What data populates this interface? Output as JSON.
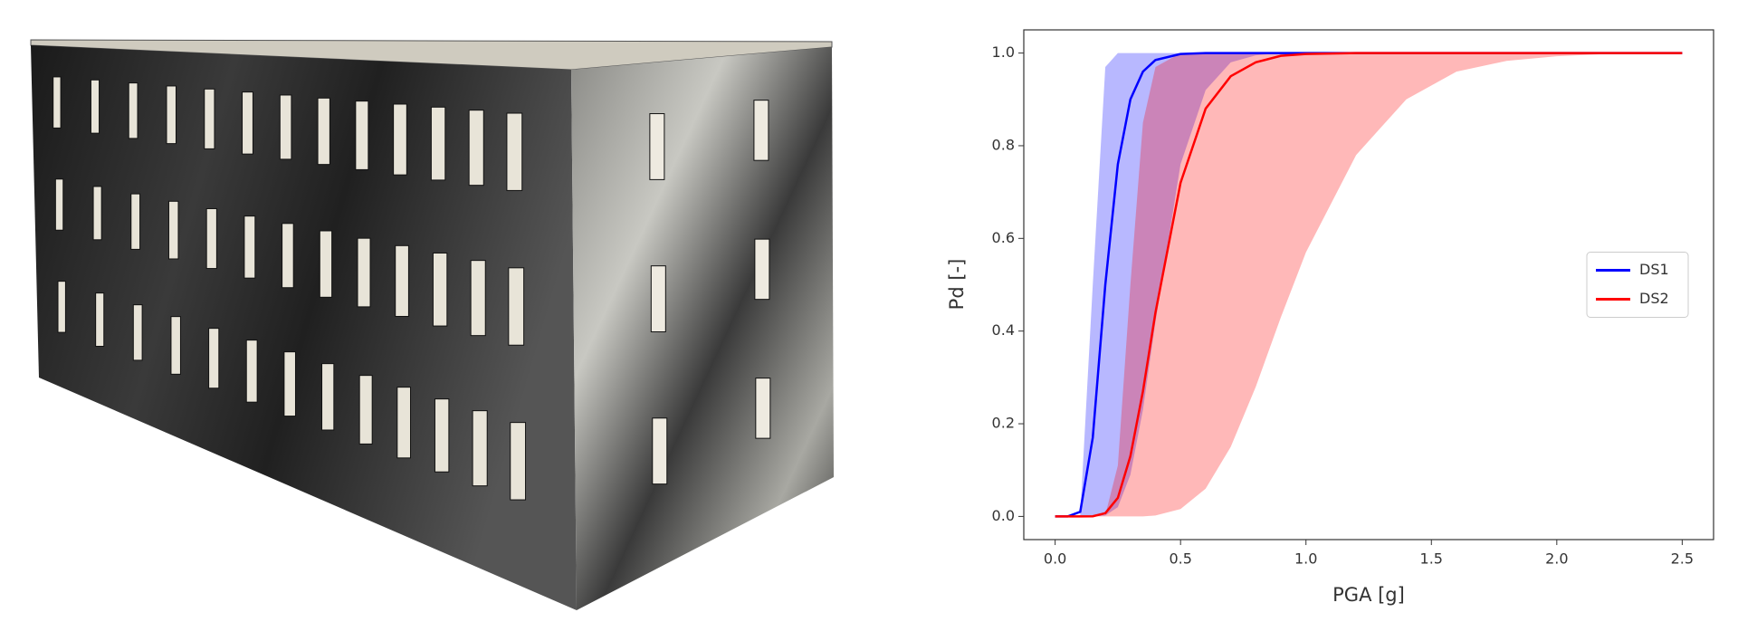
{
  "chart_data": {
    "type": "line",
    "x_label": "PGA [g]",
    "y_label": "Pd [-]",
    "x": [
      0,
      0.05,
      0.1,
      0.15,
      0.2,
      0.25,
      0.3,
      0.35,
      0.4,
      0.5,
      0.6,
      0.7,
      0.8,
      0.9,
      1.0,
      1.2,
      1.4,
      1.6,
      1.8,
      2.0,
      2.2,
      2.5
    ],
    "series": [
      {
        "name": "DS1",
        "color": "#0000ff",
        "values": [
          0,
          0,
          0.01,
          0.17,
          0.5,
          0.76,
          0.9,
          0.96,
          0.985,
          0.998,
          1,
          1,
          1,
          1,
          1,
          1,
          1,
          1,
          1,
          1,
          1,
          1
        ],
        "band_high": [
          0,
          0,
          0.003,
          0.5,
          0.97,
          1,
          1,
          1,
          1,
          1,
          1,
          1,
          1,
          1,
          1,
          1,
          1,
          1,
          1,
          1,
          1,
          1
        ],
        "band_low": [
          0,
          0,
          0,
          0,
          0.002,
          0.02,
          0.09,
          0.23,
          0.42,
          0.76,
          0.92,
          0.98,
          0.995,
          1,
          1,
          1,
          1,
          1,
          1,
          1,
          1,
          1
        ]
      },
      {
        "name": "DS2",
        "color": "#ff0000",
        "values": [
          0,
          0,
          0,
          0.0003,
          0.007,
          0.04,
          0.13,
          0.27,
          0.44,
          0.72,
          0.88,
          0.95,
          0.98,
          0.994,
          0.998,
          1,
          1,
          1,
          1,
          1,
          1,
          1
        ],
        "band_high": [
          0,
          0,
          0,
          0,
          0.003,
          0.11,
          0.5,
          0.85,
          0.97,
          1,
          1,
          1,
          1,
          1,
          1,
          1,
          1,
          1,
          1,
          1,
          1,
          1
        ],
        "band_low": [
          0,
          0,
          0,
          0,
          0,
          0,
          0,
          0,
          0.002,
          0.016,
          0.06,
          0.15,
          0.28,
          0.43,
          0.57,
          0.78,
          0.9,
          0.96,
          0.983,
          0.993,
          0.998,
          1
        ]
      }
    ],
    "xlim": [
      -0.125,
      2.625
    ],
    "xticks": [
      {
        "value": 0,
        "label": "0.0"
      },
      {
        "value": 0.5,
        "label": "0.5"
      },
      {
        "value": 1,
        "label": "1.0"
      },
      {
        "value": 1.5,
        "label": "1.5"
      },
      {
        "value": 2,
        "label": "2.0"
      },
      {
        "value": 2.5,
        "label": "2.5"
      }
    ],
    "ylim": [
      -0.05,
      1.05
    ],
    "yticks": [
      {
        "value": 0,
        "label": "0.0"
      },
      {
        "value": 0.2,
        "label": "0.2"
      },
      {
        "value": 0.4,
        "label": "0.4"
      },
      {
        "value": 0.6,
        "label": "0.6"
      },
      {
        "value": 0.8,
        "label": "0.8"
      },
      {
        "value": 1,
        "label": "1.0"
      }
    ],
    "legend": "center right",
    "grid": false
  }
}
